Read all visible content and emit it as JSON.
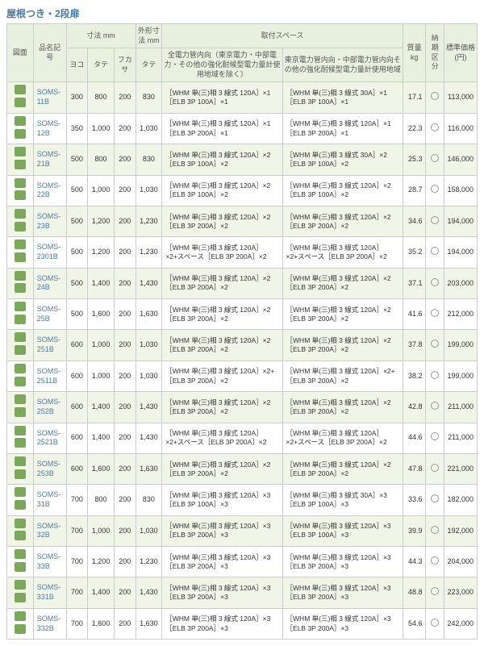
{
  "title": "屋根つき・2段扉",
  "headers": {
    "h1": "図面",
    "h2": "品名記号",
    "h3": "寸法 mm",
    "h4": "外形寸法 mm",
    "h5": "取付スペース",
    "h6": "質量\nkg",
    "h7": "納期\n区分",
    "h8": "標準価格\n(円)",
    "sh1": "ヨコ",
    "sh2": "タテ",
    "sh3": "フカサ",
    "sh4": "タテ",
    "sh5": "全電力管内向（東京電力・中部電力・その他の強化耐候型電力量計使用地域を除く）",
    "sh6": "東京電力管内向・中部電力管内向その他の強化耐候型電力量計使用地域"
  },
  "rows": [
    {
      "m": "SOMS-11B",
      "y": "300",
      "t": "800",
      "f": "200",
      "ot": "830",
      "s1": "［WHM 単(三)相 3 線式 120A］×1\n［ELB 3P 100A］×1",
      "s2": "［WHM 単(三)相 3 線式 30A］×1［ELB 3P 100A］×1",
      "w": "17.1",
      "p": "113,000"
    },
    {
      "m": "SOMS-12B",
      "y": "350",
      "t": "1,000",
      "f": "200",
      "ot": "1,030",
      "s1": "［WHM 単(三)相 3 線式 120A］×1\n［ELB 3P 200A］×1",
      "s2": "［WHM 単(三)相 3 線式 120A］×1\n［ELB 3P 200A］×1",
      "w": "22.3",
      "p": "116,000"
    },
    {
      "m": "SOMS-21B",
      "y": "500",
      "t": "800",
      "f": "200",
      "ot": "830",
      "s1": "［WHM 単(三)相 3 線式 120A］×2\n［ELB 3P 100A］×2",
      "s2": "［WHM 単(三)相 3 線式 30A］×2［ELB 3P 100A］×2",
      "w": "25.3",
      "p": "146,000"
    },
    {
      "m": "SOMS-22B",
      "y": "500",
      "t": "1,000",
      "f": "200",
      "ot": "1,030",
      "s1": "［WHM 単(三)相 3 線式 120A］×2\n［ELB 3P 100A］×2",
      "s2": "［WHM 単(三)相 3 線式 120A］×2\n［ELB 3P 100A］×2",
      "w": "28.7",
      "p": "158,000"
    },
    {
      "m": "SOMS-23B",
      "y": "500",
      "t": "1,200",
      "f": "200",
      "ot": "1,230",
      "s1": "［WHM 単(三)相 3 線式 120A］×2\n［ELB 3P 200A］×2",
      "s2": "［WHM 単(三)相 3 線式 120A］×2\n［ELB 3P 200A］×2",
      "w": "34.6",
      "p": "194,000"
    },
    {
      "m": "SOMS-2301B",
      "y": "500",
      "t": "1,200",
      "f": "200",
      "ot": "1,230",
      "s1": "［WHM 単(三)相 3 線式 120A］×2+スペース［ELB 3P 200A］×2",
      "s2": "［WHM 単(三)相 3 線式 120A］×2+スペース［ELB 3P 200A］×2",
      "w": "35.2",
      "p": "194,000"
    },
    {
      "m": "SOMS-24B",
      "y": "500",
      "t": "1,400",
      "f": "200",
      "ot": "1,430",
      "s1": "［WHM 単(三)相 3 線式 120A］×2\n［ELB 3P 200A］×2",
      "s2": "［WHM 単(三)相 3 線式 120A］×2\n［ELB 3P 200A］×2",
      "w": "37.1",
      "p": "203,000"
    },
    {
      "m": "SOMS-25B",
      "y": "500",
      "t": "1,600",
      "f": "200",
      "ot": "1,630",
      "s1": "［WHM 単(三)相 3 線式 120A］×2\n［ELB 3P 200A］×2",
      "s2": "［WHM 単(三)相 3 線式 120A］×2\n［ELB 3P 200A］×2",
      "w": "41.6",
      "p": "212,000"
    },
    {
      "m": "SOMS-251B",
      "y": "600",
      "t": "1,000",
      "f": "200",
      "ot": "1,030",
      "s1": "［WHM 単(三)相 3 線式 120A］×2\n［ELB 3P 200A］×2",
      "s2": "［WHM 単(三)相 3 線式 120A］×2\n［ELB 3P 200A］×2",
      "w": "37.8",
      "p": "199,000"
    },
    {
      "m": "SOMS-2511B",
      "y": "600",
      "t": "1,000",
      "f": "200",
      "ot": "1,030",
      "s1": "［WHM 単(三)相 3 線式 120A］×2+\n［ELB 3P 200A］×2",
      "s2": "［WHM 単(三)相 3 線式 120A］×2+\n［ELB 3P 200A］×2",
      "w": "38.2",
      "p": "199,000"
    },
    {
      "m": "SOMS-252B",
      "y": "600",
      "t": "1,400",
      "f": "200",
      "ot": "1,430",
      "s1": "［WHM 単(三)相 3 線式 120A］×2\n［ELB 3P 200A］×2",
      "s2": "［WHM 単(三)相 3 線式 120A］×2\n［ELB 3P 200A］×2",
      "w": "42.8",
      "p": "211,000"
    },
    {
      "m": "SOMS-2521B",
      "y": "600",
      "t": "1,400",
      "f": "200",
      "ot": "1,430",
      "s1": "［WHM 単(三)相 3 線式 120A］×2+スペース［ELB 3P 200A］×2",
      "s2": "［WHM 単(三)相 3 線式 120A］×2+スペース［ELB 3P 200A］×2",
      "w": "44.6",
      "p": "211,000"
    },
    {
      "m": "SOMS-253B",
      "y": "600",
      "t": "1,600",
      "f": "200",
      "ot": "1,630",
      "s1": "［WHM 単(三)相 3 線式 120A］×2\n［ELB 3P 200A］×2",
      "s2": "［WHM 単(三)相 3 線式 120A］×2\n［ELB 3P 200A］×2",
      "w": "47.8",
      "p": "221,000"
    },
    {
      "m": "SOMS-31B",
      "y": "700",
      "t": "800",
      "f": "200",
      "ot": "830",
      "s1": "［WHM 単(三)相 3 線式 120A］×3［ELB 3P 100A］×3",
      "s2": "［WHM 単(三)相 3 線式 30A］×3［ELB 3P 100A］×3",
      "w": "33.6",
      "p": "182,000"
    },
    {
      "m": "SOMS-32B",
      "y": "700",
      "t": "1,000",
      "f": "200",
      "ot": "1,030",
      "s1": "［WHM 単(三)相 3 線式 120A］×3\n［ELB 3P 200A］×3",
      "s2": "［WHM 単(三)相 3 線式 120A］×3\n［ELB 3P 100A］×3",
      "w": "39.9",
      "p": "192,000"
    },
    {
      "m": "SOMS-33B",
      "y": "700",
      "t": "1,200",
      "f": "200",
      "ot": "1,230",
      "s1": "［WHM 単(三)相 3 線式 120A］×3\n［ELB 3P 200A］×3",
      "s2": "［WHM 単(三)相 3 線式 120A］×3\n［ELB 3P 200A］×3",
      "w": "44.3",
      "p": "204,000"
    },
    {
      "m": "SOMS-331B",
      "y": "700",
      "t": "1,400",
      "f": "200",
      "ot": "1,430",
      "s1": "［WHM 単(三)相 3 線式 120A］×3［ELB 3P 200A］×3",
      "s2": "［WHM 単(三)相 3 線式 120A］×3［ELB 3P 200A］×3",
      "w": "48.8",
      "p": "223,000"
    },
    {
      "m": "SOMS-332B",
      "y": "700",
      "t": "1,600",
      "f": "200",
      "ot": "1,630",
      "s1": "［WHM 単(三)相 3 線式 120A］×3［ELB 3P 200A］×3",
      "s2": "［WHM 単(三)相 3 線式 120A］×3［ELB 3P 200A］×3",
      "w": "54.6",
      "p": "242,000"
    }
  ]
}
